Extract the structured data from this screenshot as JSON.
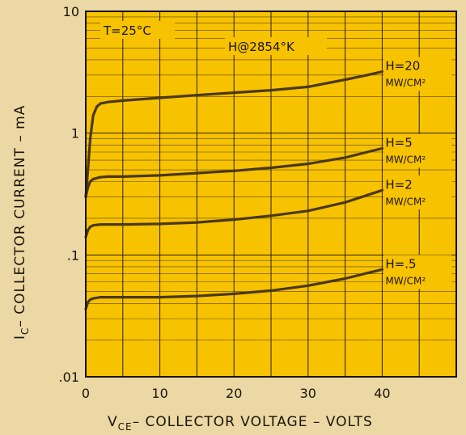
{
  "chart_data": {
    "type": "line",
    "title": "",
    "xlabel": "V_CE – COLLECTOR VOLTAGE – VOLTS",
    "xlabel_sub": "CE",
    "xlabel_main": "V",
    "xlabel_rest": "– COLLECTOR  VOLTAGE – VOLTS",
    "ylabel": "I_C – COLLECTOR CURRENT – mA",
    "ylabel_main": "I",
    "ylabel_sub": "C",
    "ylabel_rest": "– COLLECTOR  CURRENT – mA",
    "xlim": [
      0,
      50
    ],
    "ylim": [
      0.01,
      10
    ],
    "yscale": "log",
    "x_ticks": [
      0,
      10,
      20,
      30,
      40
    ],
    "x_tick_labels": [
      "0",
      "10",
      "20",
      "30",
      "40"
    ],
    "y_ticks": [
      0.01,
      0.1,
      1,
      10
    ],
    "y_tick_labels": [
      ".01",
      ".1",
      "1",
      "10"
    ],
    "grid": true,
    "background_color": "#f7c200",
    "curve_color": "#4a3818",
    "annotations": {
      "temperature": "T=25°C",
      "source": "H@2854°K"
    },
    "series": [
      {
        "label_top": "H=20",
        "label_bottom": "MW/CM²",
        "x": [
          0,
          0.3,
          0.6,
          1.0,
          1.5,
          2.0,
          3,
          5,
          10,
          15,
          20,
          25,
          30,
          35,
          38,
          40
        ],
        "y": [
          0.3,
          0.5,
          0.9,
          1.4,
          1.65,
          1.75,
          1.8,
          1.85,
          1.95,
          2.05,
          2.15,
          2.25,
          2.4,
          2.75,
          3.0,
          3.2
        ]
      },
      {
        "label_top": "H=5",
        "label_bottom": "MW/CM²",
        "x": [
          0,
          0.3,
          0.6,
          1.0,
          2,
          3,
          5,
          10,
          15,
          20,
          25,
          30,
          35,
          38,
          40
        ],
        "y": [
          0.3,
          0.36,
          0.4,
          0.42,
          0.435,
          0.44,
          0.44,
          0.45,
          0.47,
          0.49,
          0.52,
          0.56,
          0.63,
          0.7,
          0.75
        ]
      },
      {
        "label_top": "H=2",
        "label_bottom": "MW/CM²",
        "x": [
          0,
          0.3,
          0.6,
          1.0,
          2,
          3,
          5,
          10,
          15,
          20,
          25,
          30,
          35,
          38,
          40
        ],
        "y": [
          0.14,
          0.16,
          0.17,
          0.175,
          0.178,
          0.178,
          0.178,
          0.18,
          0.185,
          0.195,
          0.21,
          0.23,
          0.27,
          0.31,
          0.34
        ]
      },
      {
        "label_top": "H=.5",
        "label_bottom": "MW/CM²",
        "x": [
          0,
          0.3,
          0.6,
          1.0,
          2,
          3,
          5,
          10,
          15,
          20,
          25,
          30,
          35,
          38,
          40
        ],
        "y": [
          0.036,
          0.041,
          0.043,
          0.044,
          0.045,
          0.045,
          0.045,
          0.045,
          0.046,
          0.048,
          0.051,
          0.056,
          0.064,
          0.071,
          0.076
        ]
      }
    ]
  }
}
